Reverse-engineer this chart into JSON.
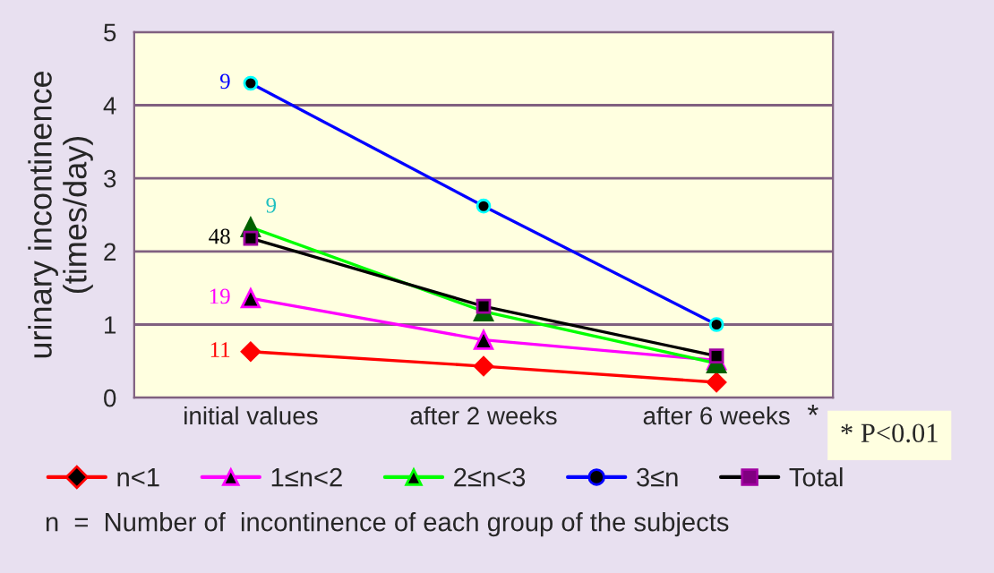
{
  "chart_data": {
    "type": "line",
    "ylabel": "urinary incontinence\n(times/day)",
    "categories": [
      "initial values",
      "after 2 weeks",
      "after 6 weeks"
    ],
    "ylim": [
      0,
      5
    ],
    "yticks": [
      0,
      1,
      2,
      3,
      4,
      5
    ],
    "grid": "y",
    "legend": "bottom",
    "line_style": "solid",
    "series": [
      {
        "name": "n<1",
        "color": "#ff0000",
        "marker": "diamond",
        "values": [
          0.63,
          0.43,
          0.21
        ]
      },
      {
        "name": "1≤n<2",
        "color": "#ff00ff",
        "marker": "triangle",
        "values": [
          1.36,
          0.79,
          0.51
        ]
      },
      {
        "name": "2≤n<3",
        "color": "#00ff00",
        "marker": "triangle",
        "values": [
          2.33,
          1.18,
          0.47
        ]
      },
      {
        "name": "3≤n",
        "color": "#0000ff",
        "marker": "circle",
        "values": [
          4.3,
          2.62,
          1.0
        ]
      },
      {
        "name": "Total",
        "color": "#000000",
        "marker": "square",
        "values": [
          2.18,
          1.25,
          0.57
        ]
      }
    ],
    "annotations": [
      {
        "text": "9",
        "x": "initial values",
        "y": 4.3
      },
      {
        "text": "9",
        "x": "initial values",
        "y": 2.33
      },
      {
        "text": "48",
        "x": "initial values",
        "y": 2.18
      },
      {
        "text": "19",
        "x": "initial values",
        "y": 1.36
      },
      {
        "text": "11",
        "x": "initial values",
        "y": 0.63
      },
      "*",
      "* P<0.01",
      "n  =  Number of  incontinence of each group of the subjects"
    ]
  }
}
